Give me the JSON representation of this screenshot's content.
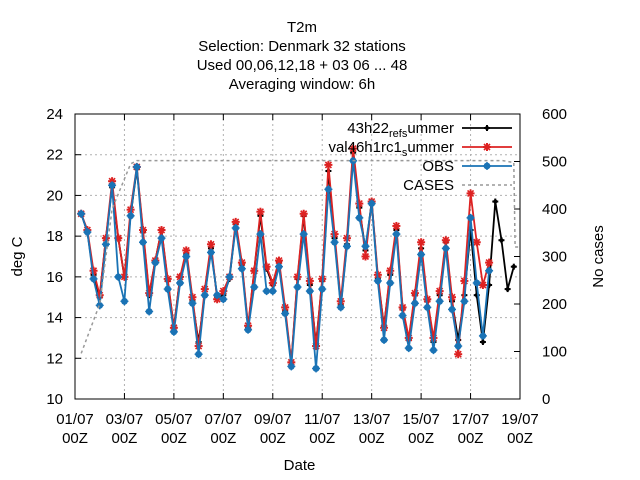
{
  "chart_data": {
    "type": "line",
    "title_lines": [
      "T2m",
      "Selection: Denmark      32 stations",
      "Used  00,06,12,18  + 03 06 ... 48",
      "Averaging window:  6h"
    ],
    "xlabel": "Date",
    "ylabel": "deg C",
    "y2label": "No cases",
    "x_ticks": [
      {
        "day": 0,
        "line1": "01/07",
        "line2": "00Z"
      },
      {
        "day": 2,
        "line1": "03/07",
        "line2": "00Z"
      },
      {
        "day": 4,
        "line1": "05/07",
        "line2": "00Z"
      },
      {
        "day": 6,
        "line1": "07/07",
        "line2": "00Z"
      },
      {
        "day": 8,
        "line1": "09/07",
        "line2": "00Z"
      },
      {
        "day": 10,
        "line1": "11/07",
        "line2": "00Z"
      },
      {
        "day": 12,
        "line1": "13/07",
        "line2": "00Z"
      },
      {
        "day": 14,
        "line1": "15/07",
        "line2": "00Z"
      },
      {
        "day": 16,
        "line1": "17/07",
        "line2": "00Z"
      },
      {
        "day": 18,
        "line1": "19/07",
        "line2": "00Z"
      }
    ],
    "xlim": [
      0,
      18
    ],
    "ylim": [
      10,
      24
    ],
    "y_ticks": [
      "10",
      "12",
      "14",
      "16",
      "18",
      "20",
      "22",
      "24"
    ],
    "y2lim": [
      0,
      600
    ],
    "y2_ticks": [
      "0",
      "100",
      "200",
      "300",
      "400",
      "500",
      "600"
    ],
    "grid": true,
    "legend_position": "top-right",
    "x_step_days": 0.25,
    "x_start_day": 0.25,
    "series": [
      {
        "name": "43h22_ref_summer",
        "legend_segments": [
          {
            "t": "43h22"
          },
          {
            "t": "ref",
            "sub": true
          },
          {
            "t": "s",
            "sub": true
          },
          {
            "t": "ummer"
          }
        ],
        "color": "#000000",
        "marker": "plus",
        "values": [
          19.1,
          18.2,
          16.1,
          15.0,
          17.9,
          20.4,
          17.9,
          16.0,
          19.0,
          21.3,
          18.2,
          15.1,
          16.8,
          18.3,
          15.8,
          13.5,
          16.0,
          17.1,
          14.8,
          12.8,
          15.1,
          17.4,
          15.0,
          15.1,
          15.9,
          18.6,
          16.6,
          13.5,
          16.3,
          19.0,
          16.4,
          15.6,
          16.7,
          14.3,
          11.8,
          15.9,
          19.0,
          15.6,
          12.7,
          15.8,
          21.2,
          17.9,
          14.6,
          17.6,
          22.1,
          19.4,
          17.3,
          19.7,
          15.9,
          13.6,
          16.1,
          18.3,
          14.4,
          12.9,
          15.1,
          17.4,
          14.8,
          12.8,
          15.1,
          17.7,
          14.8,
          12.9,
          15.1,
          18.3,
          15.1,
          12.8,
          15.6,
          19.7,
          17.8,
          15.4,
          16.5
        ]
      },
      {
        "name": "val46h1rc1_summer",
        "legend_segments": [
          {
            "t": "val46h1rc1"
          },
          {
            "t": "s",
            "sub": true
          },
          {
            "t": "ummer"
          }
        ],
        "color": "#dd2222",
        "marker": "star",
        "values": [
          19.1,
          18.3,
          16.3,
          15.1,
          17.9,
          20.7,
          17.9,
          16.0,
          19.3,
          21.4,
          18.3,
          15.2,
          16.8,
          18.3,
          15.9,
          13.5,
          16.0,
          17.3,
          15.0,
          12.6,
          15.4,
          17.6,
          14.9,
          15.3,
          16.0,
          18.7,
          16.7,
          13.6,
          16.3,
          19.2,
          16.5,
          15.7,
          16.8,
          14.5,
          11.8,
          16.0,
          19.1,
          15.8,
          12.6,
          15.9,
          21.5,
          18.1,
          14.8,
          17.9,
          22.3,
          19.6,
          17.0,
          19.7,
          16.1,
          13.5,
          16.3,
          18.5,
          14.5,
          13.0,
          15.2,
          17.7,
          14.9,
          13.0,
          15.3,
          17.8,
          15.0,
          12.2,
          15.8,
          20.1,
          17.7,
          15.6,
          16.7
        ]
      },
      {
        "name": "OBS",
        "legend_segments": [
          {
            "t": "OBS"
          }
        ],
        "color": "#1a73b5",
        "marker": "circle",
        "values": [
          19.1,
          18.2,
          15.9,
          14.6,
          17.6,
          20.5,
          16.0,
          14.8,
          19.0,
          21.4,
          17.7,
          14.3,
          16.7,
          17.9,
          15.4,
          13.3,
          15.7,
          17.0,
          14.7,
          12.2,
          15.1,
          17.2,
          15.1,
          14.9,
          16.0,
          18.4,
          16.4,
          13.4,
          15.5,
          18.1,
          15.3,
          15.3,
          16.5,
          14.2,
          11.6,
          15.5,
          18.1,
          15.3,
          11.5,
          15.4,
          20.3,
          17.7,
          14.5,
          17.5,
          21.7,
          18.9,
          17.5,
          19.6,
          15.8,
          12.9,
          15.7,
          18.1,
          14.1,
          12.5,
          14.7,
          17.1,
          14.5,
          12.4,
          14.8,
          17.4,
          14.4,
          12.6,
          14.8,
          18.9,
          15.7,
          13.1,
          16.3
        ]
      },
      {
        "name": "CASES",
        "legend_segments": [
          {
            "t": "CASES"
          }
        ],
        "color": "#999999",
        "dash": "3,3",
        "axis": "y2",
        "points": [
          [
            0.25,
            96
          ],
          [
            1.0,
            200
          ],
          [
            1.5,
            400
          ],
          [
            2.25,
            495
          ],
          [
            2.5,
            502
          ],
          [
            17.3,
            502
          ],
          [
            17.75,
            498
          ],
          [
            17.8,
            320
          ],
          [
            17.95,
            320
          ]
        ]
      }
    ]
  }
}
